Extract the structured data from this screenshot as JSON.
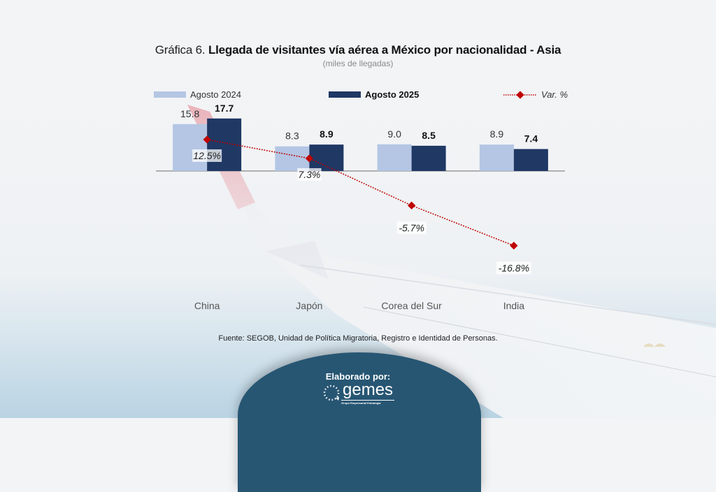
{
  "title": {
    "prefix": "Gráfica 6.",
    "main": "Llegada de visitantes vía aérea a México por nacionalidad - Asia",
    "subtitle": "(miles de llegadas)"
  },
  "colors": {
    "series_a": "#b4c6e4",
    "series_b": "#1f3864",
    "line": "#c00000",
    "badge": "#275673"
  },
  "chart_data": {
    "type": "bar",
    "title": "Gráfica 6. Llegada de visitantes vía aérea a México por nacionalidad - Asia",
    "subtitle": "(miles de llegadas)",
    "xlabel": "",
    "ylabel": "",
    "categories": [
      "China",
      "Japón",
      "Corea del Sur",
      "India"
    ],
    "series": [
      {
        "name": "Agosto 2024",
        "type": "bar",
        "values": [
          15.8,
          8.3,
          9.0,
          8.9
        ],
        "labels": [
          "15.8",
          "8.3",
          "9.0",
          "8.9"
        ]
      },
      {
        "name": "Agosto 2025",
        "type": "bar",
        "values": [
          17.7,
          8.9,
          8.5,
          7.4
        ],
        "labels": [
          "17.7",
          "8.9",
          "8.5",
          "7.4"
        ]
      },
      {
        "name": "Var. %",
        "type": "line",
        "axis": "secondary",
        "values": [
          12.5,
          7.3,
          -5.7,
          -16.8
        ],
        "labels": [
          "12.5%",
          "7.3%",
          "-5.7%",
          "-16.8%"
        ]
      }
    ],
    "ylim": [
      0,
      20
    ],
    "y2lim": [
      -30,
      20
    ],
    "grid": false,
    "legend": "top"
  },
  "legend": {
    "a": "Agosto 2024",
    "b": "Agosto 2025",
    "c": "Var. %"
  },
  "source": "Fuente: SEGOB, Unidad de Política Migratoria, Registro e Identidad de Personas.",
  "footer": {
    "label": "Elaborado por:",
    "logo_word": "gemes",
    "logo_tagline": "Grupo Empresarial Estrategia"
  }
}
